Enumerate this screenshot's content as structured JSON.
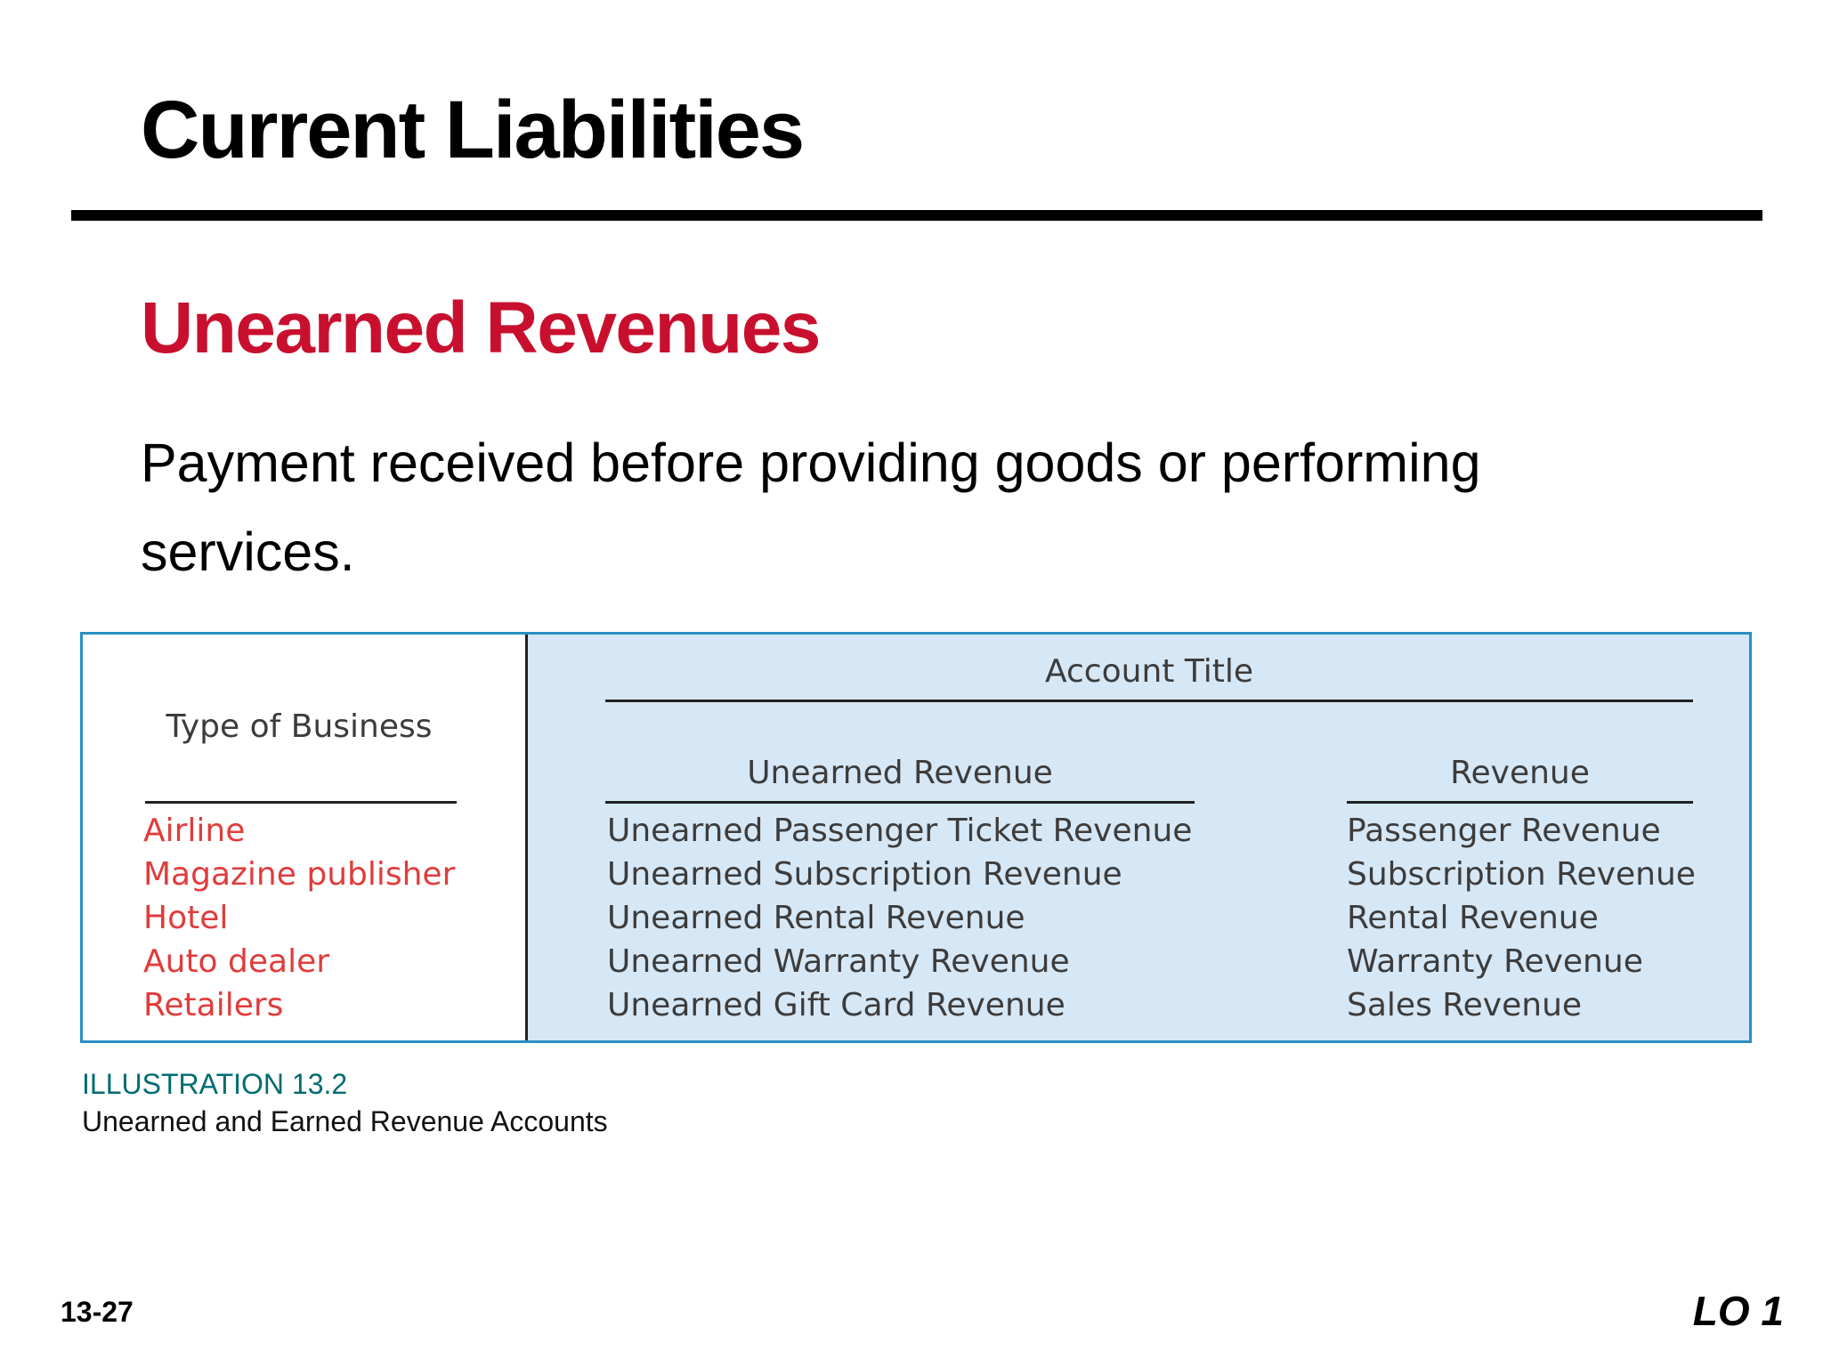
{
  "title": "Current Liabilities",
  "subtitle": "Unearned Revenues",
  "body_text": "Payment received before providing goods or performing services.",
  "illustration": {
    "left_header": "Type of Business",
    "right_header": "Account Title",
    "col_unearned_header": "Unearned Revenue",
    "col_revenue_header": "Revenue",
    "businesses": [
      "Airline",
      "Magazine publisher",
      "Hotel",
      "Auto dealer",
      "Retailers"
    ],
    "unearned_accounts": [
      "Unearned Passenger Ticket Revenue",
      "Unearned Subscription Revenue",
      "Unearned Rental Revenue",
      "Unearned Warranty Revenue",
      "Unearned Gift Card Revenue"
    ],
    "revenue_accounts": [
      "Passenger Revenue",
      "Subscription Revenue",
      "Rental Revenue",
      "Warranty Revenue",
      "Sales Revenue"
    ]
  },
  "caption": {
    "label": "ILLUSTRATION 13.2",
    "text": "Unearned and Earned Revenue Accounts"
  },
  "footer": {
    "slide_number": "13-27",
    "learning_objective": "LO 1"
  },
  "colors": {
    "subtitle": "#c8102e",
    "business_text": "#e03c3c",
    "table_fill": "#d6e7f5",
    "table_border": "#2a8fc4",
    "caption_label": "#006c6f"
  }
}
